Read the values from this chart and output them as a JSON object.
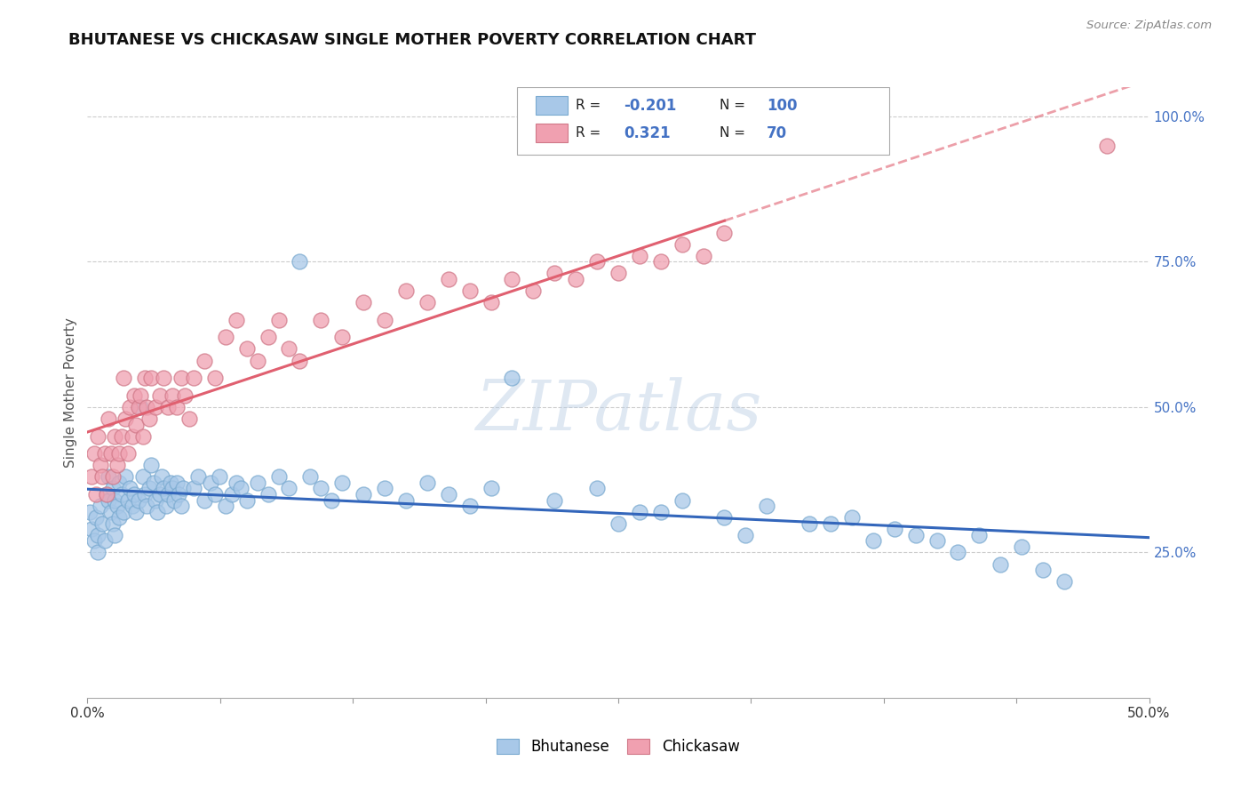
{
  "title": "BHUTANESE VS CHICKASAW SINGLE MOTHER POVERTY CORRELATION CHART",
  "source": "Source: ZipAtlas.com",
  "ylabel": "Single Mother Poverty",
  "legend_label1": "Bhutanese",
  "legend_label2": "Chickasaw",
  "R1": -0.201,
  "N1": 100,
  "R2": 0.321,
  "N2": 70,
  "color_blue": "#a8c8e8",
  "color_pink": "#f0a0b0",
  "trendline_color_blue": "#3366bb",
  "trendline_color_pink": "#e06070",
  "watermark": "ZIPatlas",
  "blue_points_x": [
    0.001,
    0.002,
    0.003,
    0.004,
    0.005,
    0.005,
    0.006,
    0.007,
    0.008,
    0.009,
    0.01,
    0.01,
    0.011,
    0.012,
    0.012,
    0.013,
    0.013,
    0.014,
    0.015,
    0.015,
    0.016,
    0.017,
    0.018,
    0.019,
    0.02,
    0.021,
    0.022,
    0.023,
    0.024,
    0.025,
    0.026,
    0.027,
    0.028,
    0.029,
    0.03,
    0.031,
    0.032,
    0.033,
    0.034,
    0.035,
    0.036,
    0.037,
    0.038,
    0.039,
    0.04,
    0.041,
    0.042,
    0.043,
    0.044,
    0.045,
    0.05,
    0.052,
    0.055,
    0.058,
    0.06,
    0.062,
    0.065,
    0.068,
    0.07,
    0.072,
    0.075,
    0.08,
    0.085,
    0.09,
    0.095,
    0.1,
    0.105,
    0.11,
    0.115,
    0.12,
    0.13,
    0.14,
    0.15,
    0.16,
    0.17,
    0.18,
    0.19,
    0.2,
    0.22,
    0.24,
    0.26,
    0.28,
    0.3,
    0.32,
    0.34,
    0.36,
    0.38,
    0.4,
    0.42,
    0.44,
    0.25,
    0.27,
    0.31,
    0.35,
    0.37,
    0.39,
    0.41,
    0.43,
    0.45,
    0.46
  ],
  "blue_points_y": [
    0.32,
    0.29,
    0.27,
    0.31,
    0.28,
    0.25,
    0.33,
    0.3,
    0.27,
    0.35,
    0.38,
    0.34,
    0.32,
    0.36,
    0.3,
    0.34,
    0.28,
    0.33,
    0.37,
    0.31,
    0.35,
    0.32,
    0.38,
    0.34,
    0.36,
    0.33,
    0.35,
    0.32,
    0.34,
    0.5,
    0.38,
    0.35,
    0.33,
    0.36,
    0.4,
    0.37,
    0.34,
    0.32,
    0.35,
    0.38,
    0.36,
    0.33,
    0.35,
    0.37,
    0.36,
    0.34,
    0.37,
    0.35,
    0.33,
    0.36,
    0.36,
    0.38,
    0.34,
    0.37,
    0.35,
    0.38,
    0.33,
    0.35,
    0.37,
    0.36,
    0.34,
    0.37,
    0.35,
    0.38,
    0.36,
    0.75,
    0.38,
    0.36,
    0.34,
    0.37,
    0.35,
    0.36,
    0.34,
    0.37,
    0.35,
    0.33,
    0.36,
    0.55,
    0.34,
    0.36,
    0.32,
    0.34,
    0.31,
    0.33,
    0.3,
    0.31,
    0.29,
    0.27,
    0.28,
    0.26,
    0.3,
    0.32,
    0.28,
    0.3,
    0.27,
    0.28,
    0.25,
    0.23,
    0.22,
    0.2
  ],
  "pink_points_x": [
    0.002,
    0.003,
    0.004,
    0.005,
    0.006,
    0.007,
    0.008,
    0.009,
    0.01,
    0.011,
    0.012,
    0.013,
    0.014,
    0.015,
    0.016,
    0.017,
    0.018,
    0.019,
    0.02,
    0.021,
    0.022,
    0.023,
    0.024,
    0.025,
    0.026,
    0.027,
    0.028,
    0.029,
    0.03,
    0.032,
    0.034,
    0.036,
    0.038,
    0.04,
    0.042,
    0.044,
    0.046,
    0.048,
    0.05,
    0.055,
    0.06,
    0.065,
    0.07,
    0.075,
    0.08,
    0.085,
    0.09,
    0.095,
    0.1,
    0.11,
    0.12,
    0.13,
    0.14,
    0.15,
    0.16,
    0.17,
    0.18,
    0.19,
    0.2,
    0.21,
    0.22,
    0.23,
    0.24,
    0.25,
    0.26,
    0.27,
    0.28,
    0.29,
    0.3,
    0.48
  ],
  "pink_points_y": [
    0.38,
    0.42,
    0.35,
    0.45,
    0.4,
    0.38,
    0.42,
    0.35,
    0.48,
    0.42,
    0.38,
    0.45,
    0.4,
    0.42,
    0.45,
    0.55,
    0.48,
    0.42,
    0.5,
    0.45,
    0.52,
    0.47,
    0.5,
    0.52,
    0.45,
    0.55,
    0.5,
    0.48,
    0.55,
    0.5,
    0.52,
    0.55,
    0.5,
    0.52,
    0.5,
    0.55,
    0.52,
    0.48,
    0.55,
    0.58,
    0.55,
    0.62,
    0.65,
    0.6,
    0.58,
    0.62,
    0.65,
    0.6,
    0.58,
    0.65,
    0.62,
    0.68,
    0.65,
    0.7,
    0.68,
    0.72,
    0.7,
    0.68,
    0.72,
    0.7,
    0.73,
    0.72,
    0.75,
    0.73,
    0.76,
    0.75,
    0.78,
    0.76,
    0.8,
    0.95
  ]
}
